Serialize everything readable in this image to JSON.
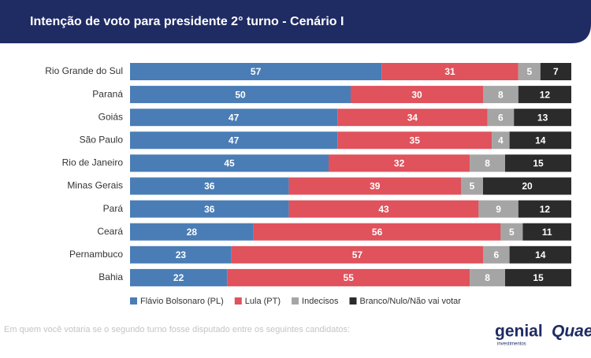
{
  "chart_data": {
    "type": "stacked-bar-horizontal",
    "title": "Intenção de voto para presidente 2° turno - Cenário I",
    "categories": [
      "Rio Grande do Sul",
      "Paraná",
      "Goiás",
      "São Paulo",
      "Rio de Janeiro",
      "Minas Gerais",
      "Pará",
      "Ceará",
      "Pernambuco",
      "Bahia"
    ],
    "series": [
      {
        "name": "Flávio Bolsonaro (PL)",
        "color": "#4a7db6",
        "values": [
          57,
          50,
          47,
          47,
          45,
          36,
          36,
          28,
          23,
          22
        ]
      },
      {
        "name": "Lula (PT)",
        "color": "#e0525c",
        "values": [
          31,
          30,
          34,
          35,
          32,
          39,
          43,
          56,
          57,
          55
        ]
      },
      {
        "name": "Indecisos",
        "color": "#a5a5a5",
        "values": [
          5,
          8,
          6,
          4,
          8,
          5,
          9,
          5,
          6,
          8
        ]
      },
      {
        "name": "Branco/Nulo/Não vai votar",
        "color": "#2b2b2b",
        "values": [
          7,
          12,
          13,
          14,
          15,
          20,
          12,
          11,
          14,
          15
        ]
      }
    ],
    "legend": "bottom",
    "footnote": "Em quem você votaria se o segundo turno fosse disputado entre os seguintes candidatos:",
    "brands": [
      "genial",
      "investimentos",
      "Quaest"
    ]
  }
}
